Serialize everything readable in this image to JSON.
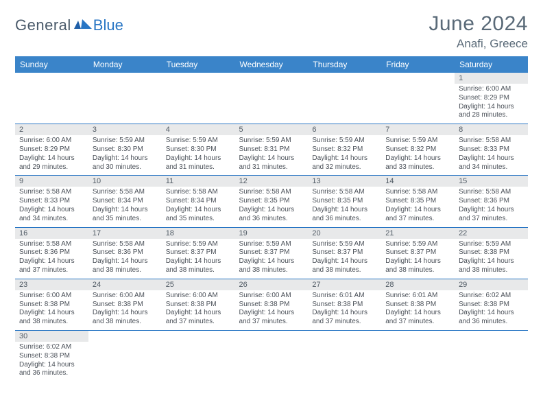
{
  "brand": {
    "general": "General",
    "blue": "Blue",
    "color_general": "#4a5a6a",
    "color_blue": "#2976c4"
  },
  "title": "June 2024",
  "location": "Anafi, Greece",
  "header_bg": "#3a84c9",
  "daynum_bg": "#e8e9ea",
  "border_color": "#2976c4",
  "text_color": "#4a5058",
  "day_headers": [
    "Sunday",
    "Monday",
    "Tuesday",
    "Wednesday",
    "Thursday",
    "Friday",
    "Saturday"
  ],
  "weeks": [
    [
      null,
      null,
      null,
      null,
      null,
      null,
      {
        "n": "1",
        "sunrise": "6:00 AM",
        "sunset": "8:29 PM",
        "dl": "14 hours and 28 minutes."
      }
    ],
    [
      {
        "n": "2",
        "sunrise": "6:00 AM",
        "sunset": "8:29 PM",
        "dl": "14 hours and 29 minutes."
      },
      {
        "n": "3",
        "sunrise": "5:59 AM",
        "sunset": "8:30 PM",
        "dl": "14 hours and 30 minutes."
      },
      {
        "n": "4",
        "sunrise": "5:59 AM",
        "sunset": "8:30 PM",
        "dl": "14 hours and 31 minutes."
      },
      {
        "n": "5",
        "sunrise": "5:59 AM",
        "sunset": "8:31 PM",
        "dl": "14 hours and 31 minutes."
      },
      {
        "n": "6",
        "sunrise": "5:59 AM",
        "sunset": "8:32 PM",
        "dl": "14 hours and 32 minutes."
      },
      {
        "n": "7",
        "sunrise": "5:59 AM",
        "sunset": "8:32 PM",
        "dl": "14 hours and 33 minutes."
      },
      {
        "n": "8",
        "sunrise": "5:58 AM",
        "sunset": "8:33 PM",
        "dl": "14 hours and 34 minutes."
      }
    ],
    [
      {
        "n": "9",
        "sunrise": "5:58 AM",
        "sunset": "8:33 PM",
        "dl": "14 hours and 34 minutes."
      },
      {
        "n": "10",
        "sunrise": "5:58 AM",
        "sunset": "8:34 PM",
        "dl": "14 hours and 35 minutes."
      },
      {
        "n": "11",
        "sunrise": "5:58 AM",
        "sunset": "8:34 PM",
        "dl": "14 hours and 35 minutes."
      },
      {
        "n": "12",
        "sunrise": "5:58 AM",
        "sunset": "8:35 PM",
        "dl": "14 hours and 36 minutes."
      },
      {
        "n": "13",
        "sunrise": "5:58 AM",
        "sunset": "8:35 PM",
        "dl": "14 hours and 36 minutes."
      },
      {
        "n": "14",
        "sunrise": "5:58 AM",
        "sunset": "8:35 PM",
        "dl": "14 hours and 37 minutes."
      },
      {
        "n": "15",
        "sunrise": "5:58 AM",
        "sunset": "8:36 PM",
        "dl": "14 hours and 37 minutes."
      }
    ],
    [
      {
        "n": "16",
        "sunrise": "5:58 AM",
        "sunset": "8:36 PM",
        "dl": "14 hours and 37 minutes."
      },
      {
        "n": "17",
        "sunrise": "5:58 AM",
        "sunset": "8:36 PM",
        "dl": "14 hours and 38 minutes."
      },
      {
        "n": "18",
        "sunrise": "5:59 AM",
        "sunset": "8:37 PM",
        "dl": "14 hours and 38 minutes."
      },
      {
        "n": "19",
        "sunrise": "5:59 AM",
        "sunset": "8:37 PM",
        "dl": "14 hours and 38 minutes."
      },
      {
        "n": "20",
        "sunrise": "5:59 AM",
        "sunset": "8:37 PM",
        "dl": "14 hours and 38 minutes."
      },
      {
        "n": "21",
        "sunrise": "5:59 AM",
        "sunset": "8:37 PM",
        "dl": "14 hours and 38 minutes."
      },
      {
        "n": "22",
        "sunrise": "5:59 AM",
        "sunset": "8:38 PM",
        "dl": "14 hours and 38 minutes."
      }
    ],
    [
      {
        "n": "23",
        "sunrise": "6:00 AM",
        "sunset": "8:38 PM",
        "dl": "14 hours and 38 minutes."
      },
      {
        "n": "24",
        "sunrise": "6:00 AM",
        "sunset": "8:38 PM",
        "dl": "14 hours and 38 minutes."
      },
      {
        "n": "25",
        "sunrise": "6:00 AM",
        "sunset": "8:38 PM",
        "dl": "14 hours and 37 minutes."
      },
      {
        "n": "26",
        "sunrise": "6:00 AM",
        "sunset": "8:38 PM",
        "dl": "14 hours and 37 minutes."
      },
      {
        "n": "27",
        "sunrise": "6:01 AM",
        "sunset": "8:38 PM",
        "dl": "14 hours and 37 minutes."
      },
      {
        "n": "28",
        "sunrise": "6:01 AM",
        "sunset": "8:38 PM",
        "dl": "14 hours and 37 minutes."
      },
      {
        "n": "29",
        "sunrise": "6:02 AM",
        "sunset": "8:38 PM",
        "dl": "14 hours and 36 minutes."
      }
    ],
    [
      {
        "n": "30",
        "sunrise": "6:02 AM",
        "sunset": "8:38 PM",
        "dl": "14 hours and 36 minutes."
      },
      null,
      null,
      null,
      null,
      null,
      null
    ]
  ],
  "labels": {
    "sunrise": "Sunrise:",
    "sunset": "Sunset:",
    "daylight": "Daylight:"
  }
}
